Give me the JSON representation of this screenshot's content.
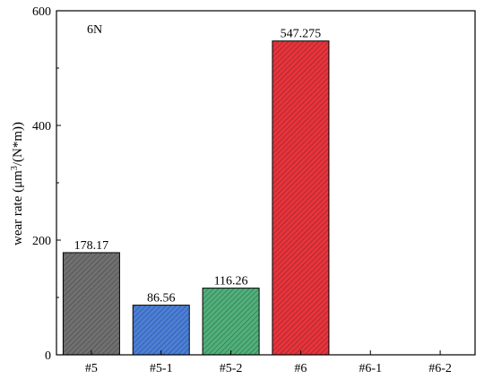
{
  "chart_data": {
    "type": "bar",
    "annotation": "6N",
    "ylabel": {
      "prefix": "wear rate (μm",
      "superscript": "3",
      "suffix": "/(N*m))"
    },
    "xlabel": "",
    "ylim": [
      0,
      600
    ],
    "yticks": [
      0,
      200,
      400,
      600
    ],
    "categories": [
      "#5",
      "#5-1",
      "#5-2",
      "#6",
      "#6-1",
      "#6-2"
    ],
    "values": [
      178.17,
      86.56,
      116.26,
      547.275,
      null,
      null
    ],
    "value_labels": [
      "178.17",
      "86.56",
      "116.26",
      "547.275",
      "",
      ""
    ],
    "colors": [
      "#707070",
      "#4a7fd9",
      "#4fb07a",
      "#e8333b",
      "#000000",
      "#000000"
    ],
    "pattern": "diagonal-hatch",
    "grid": false
  }
}
